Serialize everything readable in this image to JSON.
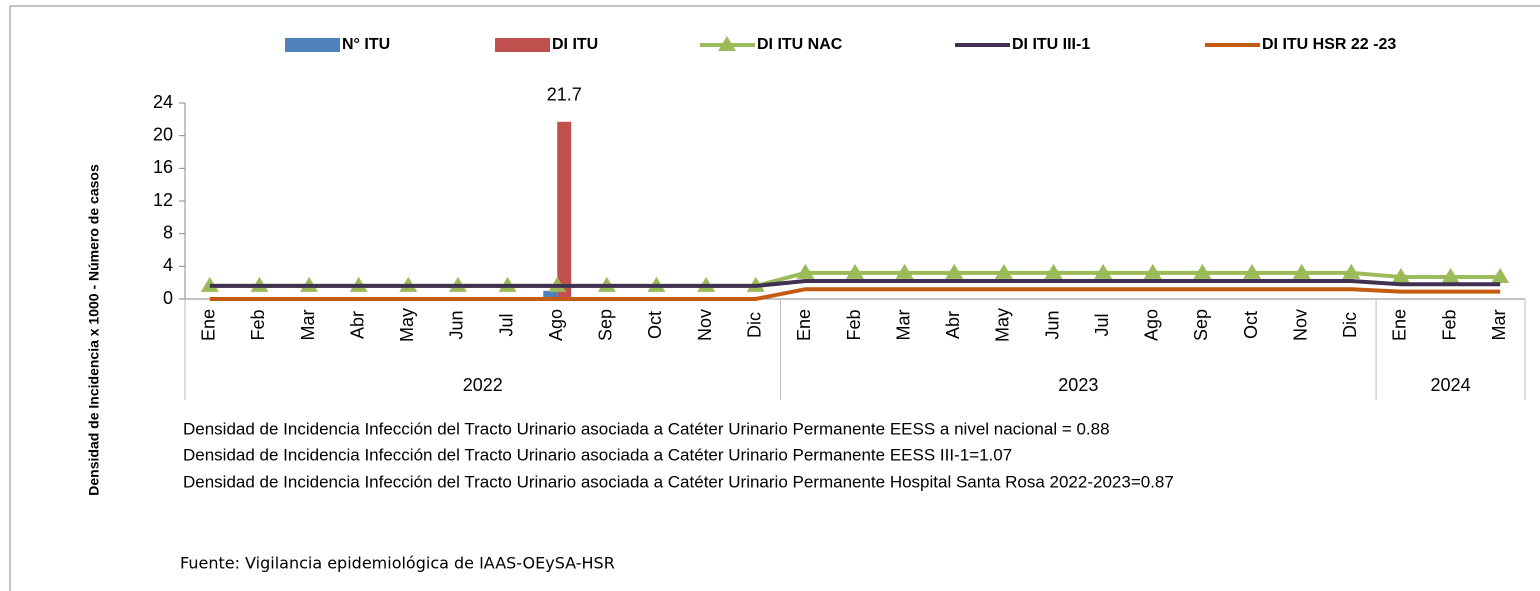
{
  "chart_data": {
    "type": "bar",
    "y_label": "Densidad de Incidencia x 1000 - Número de casos",
    "groups": [
      {
        "name": "2022",
        "categories": [
          "Ene",
          "Feb",
          "Mar",
          "Abr",
          "May",
          "Jun",
          "Jul",
          "Ago",
          "Sep",
          "Oct",
          "Nov",
          "Dic"
        ]
      },
      {
        "name": "2023",
        "categories": [
          "Ene",
          "Feb",
          "Mar",
          "Abr",
          "May",
          "Jun",
          "Jul",
          "Ago",
          "Sep",
          "Oct",
          "Nov",
          "Dic"
        ]
      },
      {
        "name": "2024",
        "categories": [
          "Ene",
          "Feb",
          "Mar"
        ]
      }
    ],
    "ylim": [
      0,
      24
    ],
    "yticks": [
      0,
      4,
      8,
      12,
      16,
      20,
      24
    ],
    "series": [
      {
        "name": "N° ITU",
        "type": "bar",
        "color": "#4f81bd",
        "values": [
          0,
          0,
          0,
          0,
          0,
          0,
          0,
          1,
          0,
          0,
          0,
          0,
          0,
          0,
          0,
          0,
          0,
          0,
          0,
          0,
          0,
          0,
          0,
          0,
          0,
          0,
          0
        ]
      },
      {
        "name": "DI ITU",
        "type": "bar",
        "color": "#c0504d",
        "values": [
          0,
          0,
          0,
          0,
          0,
          0,
          0,
          21.7,
          0,
          0,
          0,
          0,
          0,
          0,
          0,
          0,
          0,
          0,
          0,
          0,
          0,
          0,
          0,
          0,
          0,
          0,
          0
        ],
        "value_labels": [
          null,
          null,
          null,
          null,
          null,
          null,
          null,
          "21.7",
          null,
          null,
          null,
          null,
          null,
          null,
          null,
          null,
          null,
          null,
          null,
          null,
          null,
          null,
          null,
          null,
          null,
          null,
          null
        ]
      },
      {
        "name": "DI ITU NAC",
        "type": "line",
        "marker": "triangle",
        "color": "#9bbb59",
        "values": [
          1.6,
          1.6,
          1.6,
          1.6,
          1.6,
          1.6,
          1.6,
          1.6,
          1.6,
          1.6,
          1.6,
          1.6,
          3.2,
          3.2,
          3.2,
          3.2,
          3.2,
          3.2,
          3.2,
          3.2,
          3.2,
          3.2,
          3.2,
          3.2,
          2.7,
          2.7,
          2.7
        ]
      },
      {
        "name": "DI ITU III-1",
        "type": "line",
        "color": "#403152",
        "values": [
          1.6,
          1.6,
          1.6,
          1.6,
          1.6,
          1.6,
          1.6,
          1.6,
          1.6,
          1.6,
          1.6,
          1.6,
          2.2,
          2.2,
          2.2,
          2.2,
          2.2,
          2.2,
          2.2,
          2.2,
          2.2,
          2.2,
          2.2,
          2.2,
          1.8,
          1.8,
          1.8
        ]
      },
      {
        "name": "DI ITU HSR 22 -23",
        "type": "line",
        "color": "#c55a11",
        "values": [
          0,
          0,
          0,
          0,
          0,
          0,
          0,
          0,
          0,
          0,
          0,
          0,
          1.2,
          1.2,
          1.2,
          1.2,
          1.2,
          1.2,
          1.2,
          1.2,
          1.2,
          1.2,
          1.2,
          1.2,
          0.9,
          0.9,
          0.9
        ]
      }
    ],
    "notes": [
      "Densidad de Incidencia Infección del  Tracto Urinario asociada a Catéter Urinario Permanente  EESS a nivel nacional = 0.88",
      "Densidad de Incidencia Infección del  Tracto Urinario asociada a Catéter Urinario Permanente  EESS III-1=1.07",
      "Densidad de Incidencia Infección del  Tracto Urinario asociada a Catéter Urinario Permanente  Hospital Santa Rosa  2022-2023=0.87"
    ],
    "source": "Fuente: Vigilancia epidemiológica de IAAS-OEySA-HSR"
  }
}
